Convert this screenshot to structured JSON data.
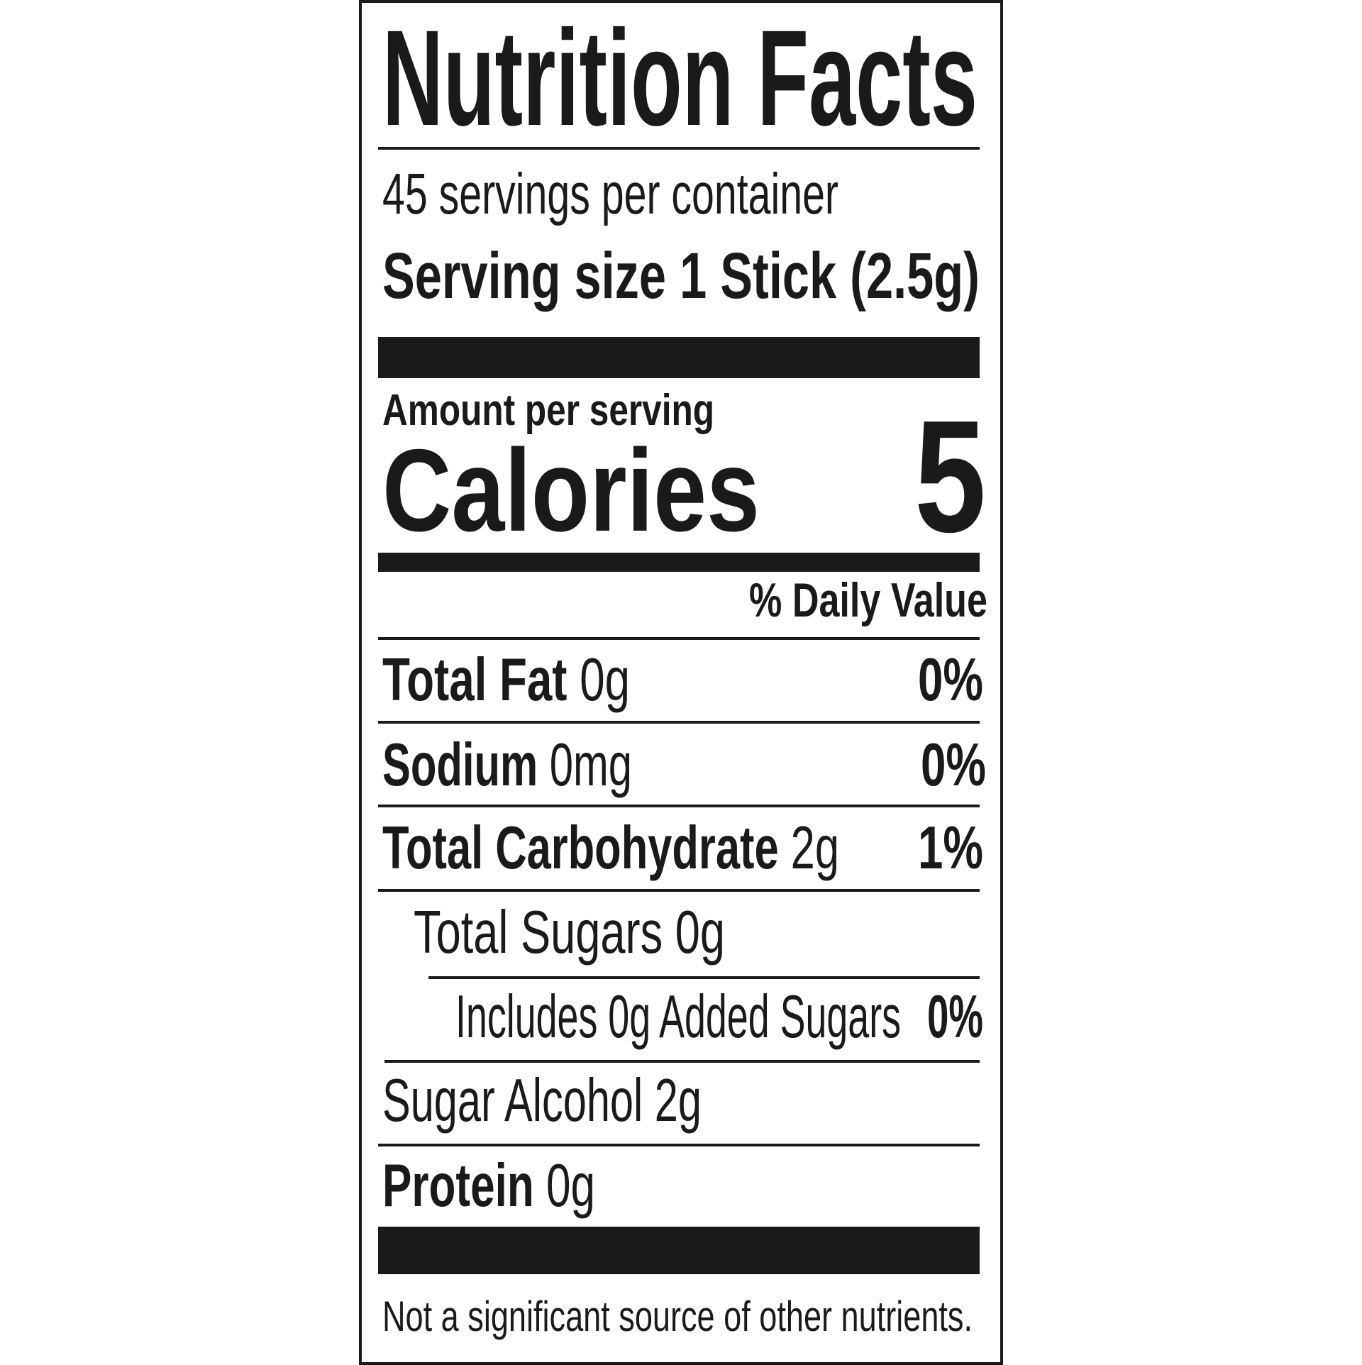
{
  "label": {
    "title": "Nutrition Facts",
    "servings_per_container": "45 servings per container",
    "serving_size": "Serving size 1 Stick (2.5g)",
    "amount_per_serving": "Amount per serving",
    "calories_label": "Calories",
    "calories_value": "5",
    "daily_value_header": "% Daily Value",
    "nutrients": [
      {
        "name": "Total Fat",
        "amount": "0g",
        "dv": "0%"
      },
      {
        "name": "Sodium",
        "amount": "0mg",
        "dv": "0%"
      },
      {
        "name": "Total Carbohydrate",
        "amount": "2g",
        "dv": "1%"
      },
      {
        "name": "Total Sugars 0g",
        "amount": "",
        "dv": ""
      },
      {
        "name": "Includes 0g Added Sugars",
        "amount": "",
        "dv": "0%"
      },
      {
        "name": "Sugar Alcohol 2g",
        "amount": "",
        "dv": ""
      },
      {
        "name": "Protein",
        "amount": "0g",
        "dv": ""
      }
    ],
    "footnote": "Not a significant source of other nutrients."
  }
}
